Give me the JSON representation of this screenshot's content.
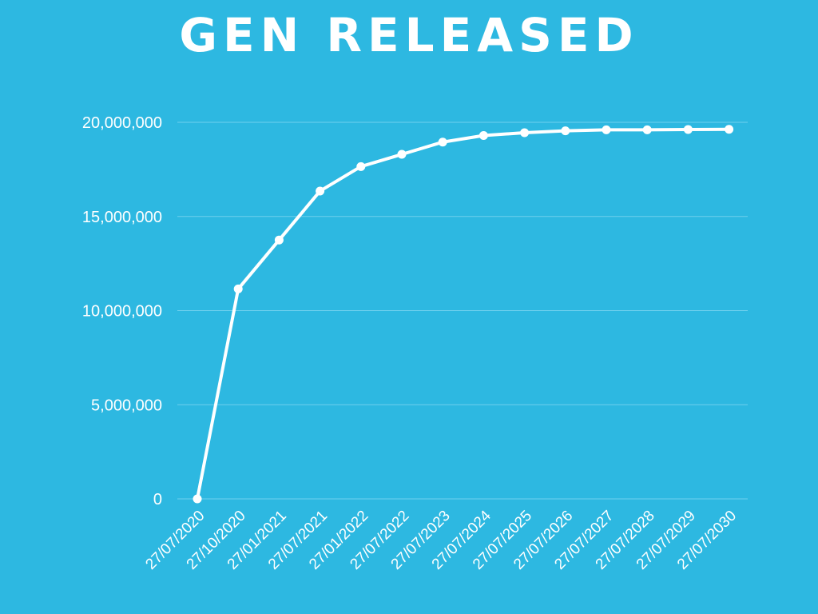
{
  "chart_data": {
    "type": "line",
    "title": "GEN RELEASED",
    "xlabel": "",
    "ylabel": "",
    "ylim": [
      0,
      20000000
    ],
    "y_ticks": [
      "0",
      "5,000,000",
      "10,000,000",
      "15,000,000",
      "20,000,000"
    ],
    "grid": true,
    "legend": "none",
    "colors": {
      "background": "#2db8e1",
      "line": "#ffffff",
      "text": "#ffffff",
      "grid": "#6fd0ee"
    },
    "categories": [
      "27/07/2020",
      "27/10/2020",
      "27/01/2021",
      "27/07/2021",
      "27/01/2022",
      "27/07/2022",
      "27/07/2023",
      "27/07/2024",
      "27/07/2025",
      "27/07/2026",
      "27/07/2027",
      "27/07/2028",
      "27/07/2029",
      "27/07/2030"
    ],
    "values": [
      0,
      11150000,
      13750000,
      16350000,
      17650000,
      18300000,
      18950000,
      19300000,
      19450000,
      19550000,
      19600000,
      19600000,
      19620000,
      19630000
    ]
  }
}
